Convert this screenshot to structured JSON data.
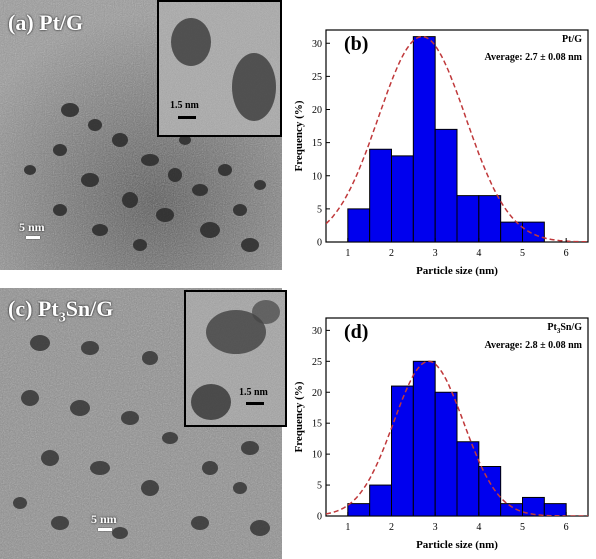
{
  "panels": {
    "a": {
      "label": "(a) Pt/G",
      "scale_bar": "5 nm",
      "inset_scale_bar": "1.5 nm"
    },
    "c": {
      "label_prefix": "(c) Pt",
      "label_sub": "3",
      "label_suffix": "Sn/G",
      "scale_bar": "5 nm",
      "inset_scale_bar": "1.5 nm"
    }
  },
  "colors": {
    "bar_fill": "#0000ee",
    "bar_stroke": "#000000",
    "fit_curve": "#c0393b"
  },
  "chart_data": [
    {
      "type": "bar",
      "panel_label": "(b)",
      "legend_name": "Pt/G",
      "annotation": "Average: 2.7 ± 0.08 nm",
      "xlabel": "Particle size (nm)",
      "ylabel": "Frequency (%)",
      "xlim": [
        0.5,
        6.5
      ],
      "ylim": [
        0,
        32
      ],
      "xticks": [
        1,
        2,
        3,
        4,
        5,
        6
      ],
      "yticks": [
        0,
        5,
        10,
        15,
        20,
        25,
        30
      ],
      "bin_width": 0.5,
      "bin_centers": [
        1.25,
        1.75,
        2.25,
        2.75,
        3.25,
        3.75,
        4.25,
        4.75,
        5.25
      ],
      "values": [
        5,
        14,
        13,
        31,
        17,
        7,
        7,
        3,
        3
      ],
      "fit": {
        "type": "gaussian",
        "mean": 2.7,
        "sigma": 1.0,
        "peak": 31
      }
    },
    {
      "type": "bar",
      "panel_label": "(d)",
      "legend_prefix": "Pt",
      "legend_sub": "3",
      "legend_suffix": "Sn/G",
      "annotation": "Average: 2.8 ± 0.08 nm",
      "xlabel": "Particle size (nm)",
      "ylabel": "Frequency (%)",
      "xlim": [
        0.5,
        6.5
      ],
      "ylim": [
        0,
        32
      ],
      "xticks": [
        1,
        2,
        3,
        4,
        5,
        6
      ],
      "yticks": [
        0,
        5,
        10,
        15,
        20,
        25,
        30
      ],
      "bin_width": 0.5,
      "bin_centers": [
        1.25,
        1.75,
        2.25,
        2.75,
        3.25,
        3.75,
        4.25,
        4.75,
        5.25,
        5.75
      ],
      "values": [
        2,
        5,
        21,
        25,
        20,
        12,
        8,
        2,
        3,
        2
      ],
      "fit": {
        "type": "gaussian",
        "mean": 2.85,
        "sigma": 0.8,
        "peak": 25
      }
    }
  ]
}
